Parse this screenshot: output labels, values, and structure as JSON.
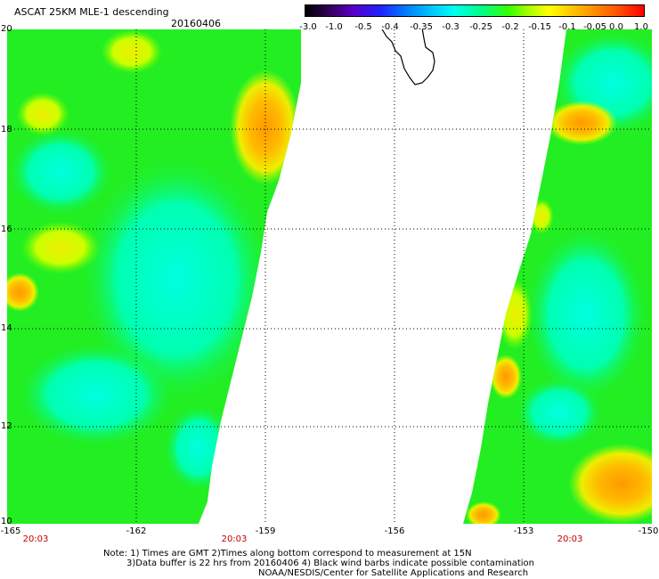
{
  "header": {
    "title": "ASCAT 25KM MLE-1 descending",
    "date": "20160406"
  },
  "colorbar": {
    "labels": [
      "-3.0",
      "-1.0",
      "-0.5",
      "-0.4",
      "-0.35",
      "-0.3",
      "-0.25",
      "-0.2",
      "-0.15",
      "-0.1",
      "-0.05",
      "0.0",
      "1.0"
    ],
    "colors": [
      "#000000",
      "#5a00c8",
      "#2020ff",
      "#0080ff",
      "#00ccff",
      "#00ffee",
      "#00ff88",
      "#33ff00",
      "#aaff00",
      "#ffff00",
      "#ffcc00",
      "#ff9900",
      "#ff0000"
    ]
  },
  "axes": {
    "lat_labels": [
      "20",
      "18",
      "16",
      "14",
      "12",
      "10"
    ],
    "lon_labels": [
      "-165",
      "-162",
      "-159",
      "-156",
      "-153",
      "-150"
    ],
    "lat_range": [
      10,
      20
    ],
    "lon_range": [
      -165,
      -150
    ],
    "grid": true
  },
  "swath_times": [
    "20:03",
    "20:03",
    "20:03"
  ],
  "notes": [
    "Note: 1) Times are GMT 2)Times along bottom correspond to measurement at 15N",
    "3)Data buffer is 22 hrs from 20160406 4) Black wind barbs indicate possible contamination",
    "NOAA/NESDIS/Center for Satellite Applications and Research"
  ],
  "colors": {
    "green": "#22ee22",
    "cyan": "#00ffdd",
    "yellow": "#eeee00",
    "orange": "#ffaa00",
    "time_red": "#c00000"
  }
}
